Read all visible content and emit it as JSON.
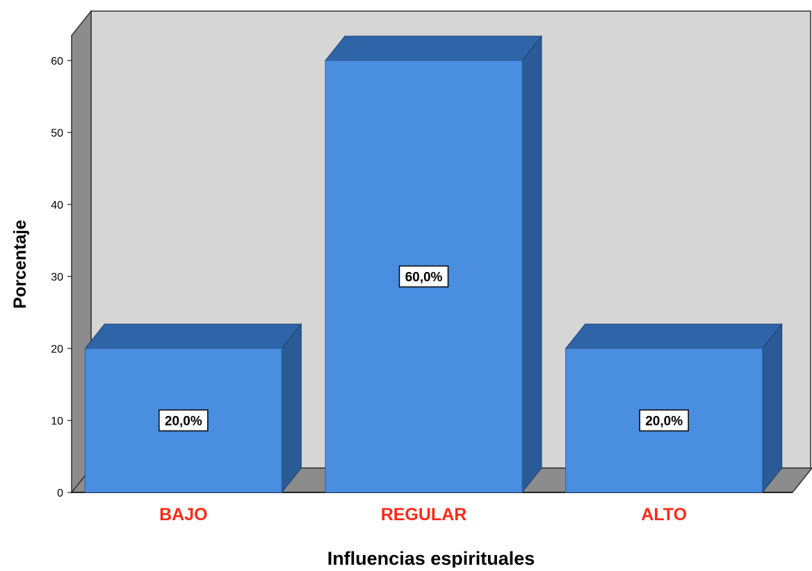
{
  "chart_data": {
    "type": "bar",
    "title": "",
    "xlabel": "Influencias espirituales",
    "ylabel": "Porcentaje",
    "categories": [
      "BAJO",
      "REGULAR",
      "ALTO"
    ],
    "values": [
      20,
      60,
      20
    ],
    "data_labels": [
      "20,0%",
      "60,0%",
      "20,0%"
    ],
    "ylim": [
      0,
      65
    ],
    "yticks": [
      0,
      10,
      20,
      30,
      40,
      50,
      60
    ],
    "ytick_labels": [
      "0",
      "10",
      "20",
      "30",
      "40",
      "50",
      "60"
    ],
    "grid": false,
    "legend": "none",
    "style": "3d",
    "colors": {
      "bar_front": "#4a8ee0",
      "bar_side": "#2a5b96",
      "bar_top": "#2f64a8",
      "plot_back": "#d6d6d6",
      "plot_wall": "#8c8c8c",
      "category_label": "#ff2a1a",
      "axis_text": "#000000"
    }
  }
}
